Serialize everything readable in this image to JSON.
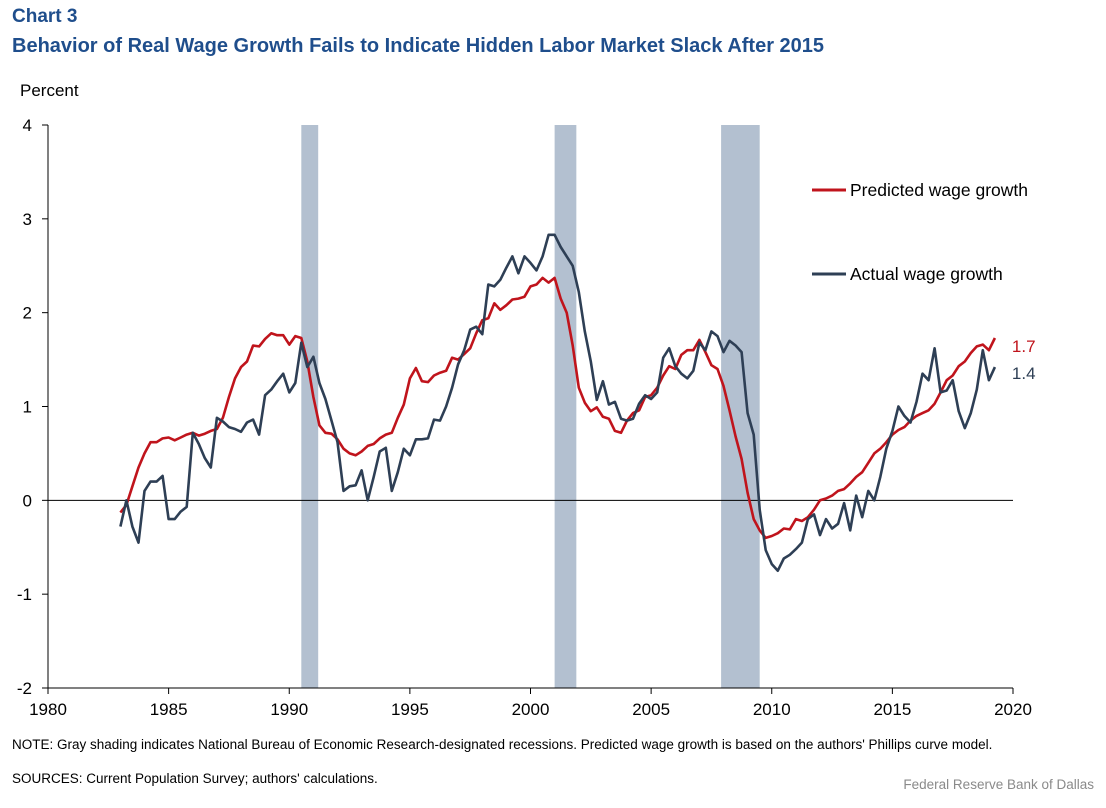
{
  "header": {
    "label": "Chart 3",
    "title": "Behavior of Real Wage Growth Fails to Indicate Hidden Labor Market Slack After 2015"
  },
  "footer": {
    "note": "NOTE: Gray shading indicates National Bureau of Economic Research-designated recessions. Predicted wage growth is based on the authors' Phillips curve model.",
    "sources": "SOURCES: Current Population Survey; authors' calculations.",
    "credit": "Federal Reserve Bank of Dallas"
  },
  "colors": {
    "predicted": "#c0141c",
    "actual": "#2e3f55",
    "recession": "#b3c0d0",
    "axis": "#000000"
  },
  "chart_data": {
    "type": "line",
    "ylabel": "Percent",
    "xlim": [
      1980,
      2020
    ],
    "ylim": [
      -2,
      4
    ],
    "xticks": [
      1980,
      1985,
      1990,
      1995,
      2000,
      2005,
      2010,
      2015,
      2020
    ],
    "yticks": [
      -2,
      -1,
      0,
      1,
      2,
      3,
      4
    ],
    "recessions": [
      [
        1990.5,
        1991.2
      ],
      [
        2001.0,
        2001.9
      ],
      [
        2007.9,
        2009.5
      ]
    ],
    "legend": {
      "placement": "right",
      "entries": [
        "Predicted wage growth",
        "Actual wage growth"
      ]
    },
    "end_labels": {
      "predicted": "1.7",
      "actual": "1.4"
    },
    "series": [
      {
        "name": "Predicted wage growth",
        "x": [
          1983.0,
          1983.25,
          1983.5,
          1983.75,
          1984.0,
          1984.25,
          1984.5,
          1984.75,
          1985.0,
          1985.25,
          1985.5,
          1985.75,
          1986.0,
          1986.25,
          1986.5,
          1986.75,
          1987.0,
          1987.25,
          1987.5,
          1987.75,
          1988.0,
          1988.25,
          1988.5,
          1988.75,
          1989.0,
          1989.25,
          1989.5,
          1989.75,
          1990.0,
          1990.25,
          1990.5,
          1990.75,
          1991.0,
          1991.25,
          1991.5,
          1991.75,
          1992.0,
          1992.25,
          1992.5,
          1992.75,
          1993.0,
          1993.25,
          1993.5,
          1993.75,
          1994.0,
          1994.25,
          1994.5,
          1994.75,
          1995.0,
          1995.25,
          1995.5,
          1995.75,
          1996.0,
          1996.25,
          1996.5,
          1996.75,
          1997.0,
          1997.25,
          1997.5,
          1997.75,
          1998.0,
          1998.25,
          1998.5,
          1998.75,
          1999.0,
          1999.25,
          1999.5,
          1999.75,
          2000.0,
          2000.25,
          2000.5,
          2000.75,
          2001.0,
          2001.25,
          2001.5,
          2001.75,
          2002.0,
          2002.25,
          2002.5,
          2002.75,
          2003.0,
          2003.25,
          2003.5,
          2003.75,
          2004.0,
          2004.25,
          2004.5,
          2004.75,
          2005.0,
          2005.25,
          2005.5,
          2005.75,
          2006.0,
          2006.25,
          2006.5,
          2006.75,
          2007.0,
          2007.25,
          2007.5,
          2007.75,
          2008.0,
          2008.25,
          2008.5,
          2008.75,
          2009.0,
          2009.25,
          2009.5,
          2009.75,
          2010.0,
          2010.25,
          2010.5,
          2010.75,
          2011.0,
          2011.25,
          2011.5,
          2011.75,
          2012.0,
          2012.25,
          2012.5,
          2012.75,
          2013.0,
          2013.25,
          2013.5,
          2013.75,
          2014.0,
          2014.25,
          2014.5,
          2014.75,
          2015.0,
          2015.25,
          2015.5,
          2015.75,
          2016.0,
          2016.25,
          2016.5,
          2016.75,
          2017.0,
          2017.25,
          2017.5,
          2017.75,
          2018.0,
          2018.25,
          2018.5,
          2018.75,
          2019.0,
          2019.25
        ],
        "values": [
          -0.13,
          -0.05,
          0.15,
          0.35,
          0.5,
          0.62,
          0.62,
          0.66,
          0.67,
          0.64,
          0.67,
          0.7,
          0.72,
          0.69,
          0.71,
          0.74,
          0.76,
          0.88,
          1.1,
          1.3,
          1.42,
          1.48,
          1.65,
          1.64,
          1.72,
          1.78,
          1.76,
          1.76,
          1.66,
          1.75,
          1.73,
          1.48,
          1.1,
          0.8,
          0.72,
          0.71,
          0.65,
          0.55,
          0.5,
          0.48,
          0.52,
          0.58,
          0.6,
          0.66,
          0.7,
          0.72,
          0.88,
          1.02,
          1.3,
          1.41,
          1.27,
          1.26,
          1.33,
          1.36,
          1.38,
          1.52,
          1.5,
          1.56,
          1.62,
          1.78,
          1.92,
          1.94,
          2.1,
          2.03,
          2.08,
          2.14,
          2.15,
          2.17,
          2.28,
          2.3,
          2.37,
          2.32,
          2.37,
          2.15,
          2.0,
          1.65,
          1.2,
          1.04,
          0.95,
          0.99,
          0.89,
          0.87,
          0.74,
          0.72,
          0.85,
          0.93,
          0.96,
          1.1,
          1.12,
          1.2,
          1.33,
          1.43,
          1.4,
          1.55,
          1.6,
          1.6,
          1.71,
          1.58,
          1.44,
          1.4,
          1.22,
          0.96,
          0.68,
          0.44,
          0.08,
          -0.2,
          -0.32,
          -0.4,
          -0.38,
          -0.35,
          -0.3,
          -0.31,
          -0.2,
          -0.22,
          -0.18,
          -0.1,
          0.0,
          0.02,
          0.05,
          0.1,
          0.12,
          0.18,
          0.25,
          0.3,
          0.4,
          0.5,
          0.55,
          0.62,
          0.7,
          0.75,
          0.78,
          0.85,
          0.9,
          0.93,
          0.96,
          1.03,
          1.15,
          1.28,
          1.33,
          1.43,
          1.48,
          1.57,
          1.64,
          1.66,
          1.6,
          1.73
        ]
      },
      {
        "name": "Actual wage growth",
        "x": [
          1983.0,
          1983.25,
          1983.5,
          1983.75,
          1984.0,
          1984.25,
          1984.5,
          1984.75,
          1985.0,
          1985.25,
          1985.5,
          1985.75,
          1986.0,
          1986.25,
          1986.5,
          1986.75,
          1987.0,
          1987.25,
          1987.5,
          1987.75,
          1988.0,
          1988.25,
          1988.5,
          1988.75,
          1989.0,
          1989.25,
          1989.5,
          1989.75,
          1990.0,
          1990.25,
          1990.5,
          1990.75,
          1991.0,
          1991.25,
          1991.5,
          1991.75,
          1992.0,
          1992.25,
          1992.5,
          1992.75,
          1993.0,
          1993.25,
          1993.5,
          1993.75,
          1994.0,
          1994.25,
          1994.5,
          1994.75,
          1995.0,
          1995.25,
          1995.5,
          1995.75,
          1996.0,
          1996.25,
          1996.5,
          1996.75,
          1997.0,
          1997.25,
          1997.5,
          1997.75,
          1998.0,
          1998.25,
          1998.5,
          1998.75,
          1999.0,
          1999.25,
          1999.5,
          1999.75,
          2000.0,
          2000.25,
          2000.5,
          2000.75,
          2001.0,
          2001.25,
          2001.5,
          2001.75,
          2002.0,
          2002.25,
          2002.5,
          2002.75,
          2003.0,
          2003.25,
          2003.5,
          2003.75,
          2004.0,
          2004.25,
          2004.5,
          2004.75,
          2005.0,
          2005.25,
          2005.5,
          2005.75,
          2006.0,
          2006.25,
          2006.5,
          2006.75,
          2007.0,
          2007.25,
          2007.5,
          2007.75,
          2008.0,
          2008.25,
          2008.5,
          2008.75,
          2009.0,
          2009.25,
          2009.5,
          2009.75,
          2010.0,
          2010.25,
          2010.5,
          2010.75,
          2011.0,
          2011.25,
          2011.5,
          2011.75,
          2012.0,
          2012.25,
          2012.5,
          2012.75,
          2013.0,
          2013.25,
          2013.5,
          2013.75,
          2014.0,
          2014.25,
          2014.5,
          2014.75,
          2015.0,
          2015.25,
          2015.5,
          2015.75,
          2016.0,
          2016.25,
          2016.5,
          2016.75,
          2017.0,
          2017.25,
          2017.5,
          2017.75,
          2018.0,
          2018.25,
          2018.5,
          2018.75,
          2019.0,
          2019.25
        ],
        "values": [
          -0.28,
          0.0,
          -0.28,
          -0.45,
          0.1,
          0.2,
          0.2,
          0.26,
          -0.2,
          -0.2,
          -0.12,
          -0.07,
          0.72,
          0.6,
          0.45,
          0.35,
          0.88,
          0.84,
          0.78,
          0.76,
          0.73,
          0.83,
          0.86,
          0.7,
          1.12,
          1.18,
          1.27,
          1.35,
          1.15,
          1.25,
          1.68,
          1.42,
          1.53,
          1.25,
          1.08,
          0.85,
          0.62,
          0.1,
          0.15,
          0.16,
          0.32,
          0.0,
          0.25,
          0.52,
          0.56,
          0.1,
          0.3,
          0.55,
          0.48,
          0.65,
          0.65,
          0.66,
          0.86,
          0.85,
          1.0,
          1.2,
          1.45,
          1.6,
          1.82,
          1.85,
          1.77,
          2.3,
          2.28,
          2.35,
          2.48,
          2.6,
          2.42,
          2.6,
          2.53,
          2.45,
          2.6,
          2.83,
          2.83,
          2.7,
          2.6,
          2.5,
          2.22,
          1.8,
          1.48,
          1.07,
          1.27,
          1.02,
          1.05,
          0.87,
          0.85,
          0.87,
          1.03,
          1.12,
          1.08,
          1.15,
          1.52,
          1.62,
          1.43,
          1.35,
          1.3,
          1.38,
          1.68,
          1.6,
          1.8,
          1.75,
          1.58,
          1.7,
          1.65,
          1.58,
          0.93,
          0.7,
          -0.1,
          -0.53,
          -0.68,
          -0.75,
          -0.62,
          -0.58,
          -0.52,
          -0.45,
          -0.2,
          -0.15,
          -0.37,
          -0.2,
          -0.3,
          -0.25,
          -0.03,
          -0.32,
          0.05,
          -0.18,
          0.1,
          0.0,
          0.25,
          0.55,
          0.74,
          1.0,
          0.9,
          0.83,
          1.05,
          1.35,
          1.28,
          1.62,
          1.15,
          1.17,
          1.28,
          0.95,
          0.77,
          0.93,
          1.18,
          1.6,
          1.28,
          1.42
        ]
      }
    ]
  }
}
